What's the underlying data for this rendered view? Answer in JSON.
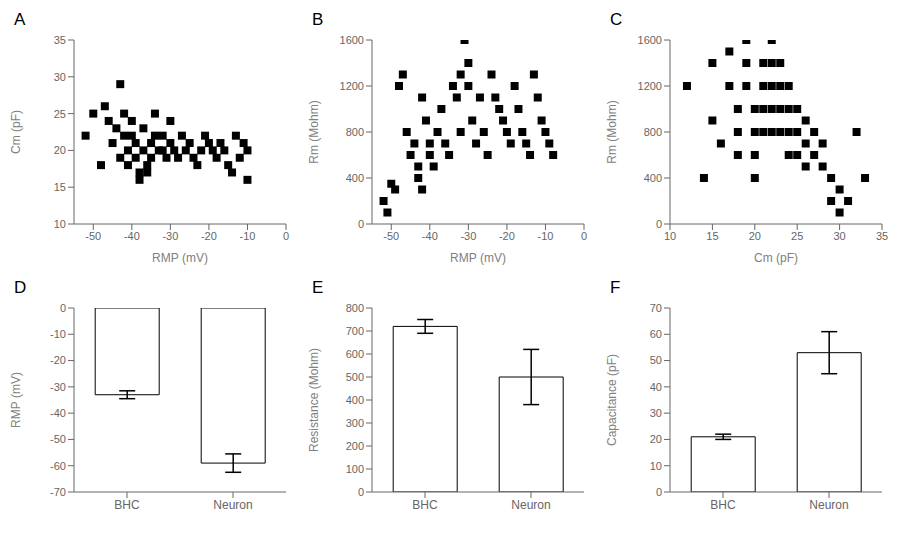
{
  "chart_data": [
    {
      "type": "scatter",
      "title": "A",
      "xlabel": "RMP (mV)",
      "ylabel": "Cm (pF)",
      "xlim": [
        -55,
        0
      ],
      "ylim": [
        10,
        35
      ],
      "xticks": [
        -50,
        -40,
        -30,
        -20,
        -10,
        0
      ],
      "yticks": [
        10,
        15,
        20,
        25,
        30,
        35
      ],
      "x": [
        -52,
        -50,
        -48,
        -47,
        -46,
        -45,
        -44,
        -43,
        -43,
        -42,
        -42,
        -41,
        -41,
        -40,
        -40,
        -39,
        -39,
        -38,
        -38,
        -37,
        -37,
        -36,
        -36,
        -35,
        -35,
        -34,
        -34,
        -33,
        -32,
        -32,
        -31,
        -30,
        -30,
        -29,
        -28,
        -27,
        -26,
        -25,
        -24,
        -23,
        -22,
        -21,
        -20,
        -19,
        -18,
        -17,
        -16,
        -15,
        -14,
        -13,
        -12,
        -11,
        -10,
        -10
      ],
      "y": [
        22,
        25,
        18,
        26,
        24,
        21,
        23,
        19,
        29,
        25,
        22,
        20,
        18,
        24,
        22,
        21,
        19,
        17,
        16,
        23,
        20,
        18,
        17,
        21,
        19,
        25,
        22,
        20,
        22,
        20,
        19,
        21,
        24,
        20,
        19,
        22,
        20,
        21,
        19,
        18,
        20,
        22,
        21,
        20,
        19,
        21,
        20,
        18,
        17,
        22,
        19,
        21,
        20,
        16
      ],
      "color": "black",
      "marker": "square",
      "grid": false
    },
    {
      "type": "scatter",
      "title": "B",
      "xlabel": "RMP (mV)",
      "ylabel": "Rm (Mohm)",
      "xlim": [
        -55,
        0
      ],
      "ylim": [
        0,
        1600
      ],
      "xticks": [
        -50,
        -40,
        -30,
        -20,
        -10,
        0
      ],
      "yticks": [
        0,
        400,
        800,
        1200,
        1600
      ],
      "x": [
        -52,
        -51,
        -50,
        -49,
        -48,
        -47,
        -46,
        -45,
        -44,
        -43,
        -43,
        -42,
        -42,
        -41,
        -40,
        -40,
        -39,
        -38,
        -37,
        -36,
        -35,
        -34,
        -33,
        -32,
        -32,
        -31,
        -30,
        -30,
        -29,
        -28,
        -27,
        -26,
        -25,
        -24,
        -23,
        -22,
        -21,
        -20,
        -19,
        -18,
        -17,
        -16,
        -15,
        -14,
        -13,
        -12,
        -11,
        -10,
        -9,
        -8
      ],
      "y": [
        200,
        100,
        350,
        300,
        1200,
        1300,
        800,
        600,
        700,
        500,
        400,
        300,
        1100,
        900,
        700,
        600,
        500,
        800,
        1000,
        700,
        600,
        1200,
        1100,
        1300,
        800,
        1600,
        1400,
        1200,
        900,
        700,
        1100,
        800,
        600,
        1300,
        1100,
        1000,
        900,
        800,
        700,
        1200,
        1000,
        800,
        700,
        600,
        1300,
        1100,
        900,
        800,
        700,
        600
      ],
      "color": "black",
      "marker": "square",
      "grid": false
    },
    {
      "type": "scatter",
      "title": "C",
      "xlabel": "Cm (pF)",
      "ylabel": "Rm (Mohm)",
      "xlim": [
        10,
        35
      ],
      "ylim": [
        0,
        1600
      ],
      "xticks": [
        10,
        15,
        20,
        25,
        30,
        35
      ],
      "yticks": [
        0,
        400,
        800,
        1200,
        1600
      ],
      "x": [
        12,
        14,
        15,
        15,
        16,
        17,
        17,
        18,
        18,
        18,
        19,
        19,
        19,
        20,
        20,
        20,
        20,
        21,
        21,
        21,
        21,
        22,
        22,
        22,
        22,
        22,
        23,
        23,
        23,
        23,
        24,
        24,
        24,
        24,
        25,
        25,
        25,
        26,
        26,
        26,
        27,
        27,
        28,
        28,
        29,
        29,
        30,
        30,
        31,
        32,
        33
      ],
      "y": [
        1200,
        400,
        1400,
        900,
        700,
        1500,
        1200,
        1000,
        800,
        600,
        1600,
        1400,
        1200,
        1000,
        800,
        600,
        400,
        1400,
        1200,
        1000,
        800,
        1600,
        1400,
        1200,
        1000,
        800,
        1400,
        1200,
        1000,
        800,
        1200,
        1000,
        800,
        600,
        1000,
        800,
        600,
        900,
        700,
        500,
        800,
        600,
        700,
        500,
        400,
        200,
        300,
        100,
        200,
        800,
        400
      ],
      "color": "black",
      "marker": "square",
      "grid": false
    },
    {
      "type": "bar",
      "title": "D",
      "ylabel": "RMP (mV)",
      "categories": [
        "BHC",
        "Neuron"
      ],
      "values": [
        -33,
        -59
      ],
      "errors": [
        1.5,
        3.5
      ],
      "ylim": [
        -70,
        0
      ],
      "yticks": [
        -70,
        -60,
        -50,
        -40,
        -30,
        -20,
        -10,
        0
      ],
      "colors": [
        "white",
        "white"
      ],
      "grid": false
    },
    {
      "type": "bar",
      "title": "E",
      "ylabel": "Resistance (Mohm)",
      "categories": [
        "BHC",
        "Neuron"
      ],
      "values": [
        720,
        500
      ],
      "errors": [
        30,
        120
      ],
      "ylim": [
        0,
        800
      ],
      "yticks": [
        0,
        100,
        200,
        300,
        400,
        500,
        600,
        700,
        800
      ],
      "colors": [
        "white",
        "white"
      ],
      "grid": false
    },
    {
      "type": "bar",
      "title": "F",
      "ylabel": "Capacitance (pF)",
      "categories": [
        "BHC",
        "Neuron"
      ],
      "values": [
        21,
        53
      ],
      "errors": [
        1,
        8
      ],
      "ylim": [
        0,
        70
      ],
      "yticks": [
        0,
        10,
        20,
        30,
        40,
        50,
        60,
        70
      ],
      "colors": [
        "white",
        "white"
      ],
      "grid": false
    }
  ]
}
